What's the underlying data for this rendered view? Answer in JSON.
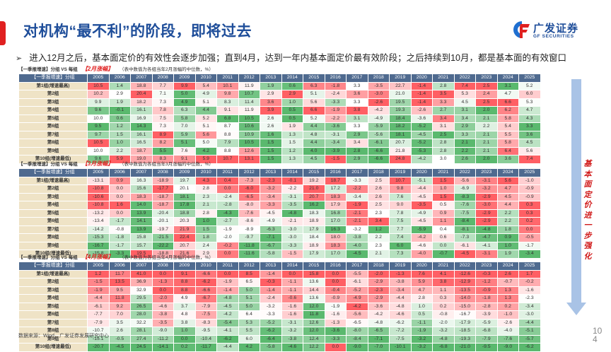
{
  "header": {
    "title": "对机构“最不利”的阶段，即将过去",
    "logo_cn": "广发证券",
    "logo_en": "GF SECURITIES"
  },
  "bullet": "进入12月之后，基本面定价的有效性会逐步加强；直到4月，达到一年内基本面定价最有效阶段；之后持续到10月，都是基本面的有效窗口",
  "side_annotation": "基本面定价进一步强化",
  "page_number": "10\n4",
  "source": "数据来源：Wind，广发证券发展研究中心",
  "colors": {
    "title_blue": "#1f4e9a",
    "accent_red": "#e02020",
    "header_bg": "#4f6a8f",
    "group_bg": "#efe3c6",
    "arrow_blue": "#a9c3e6"
  },
  "tables": [
    {
      "caption_prefix": "【一季报增速】分组 VS 每组",
      "caption_month": "【2月涨幅】",
      "caption_note": "（表中数值为各组当年2月涨幅的中位数，%）",
      "header_label": "【一季报增速】分组",
      "years": [
        "2005",
        "2006",
        "2007",
        "2008",
        "2009",
        "2010",
        "2011",
        "2012",
        "2013",
        "2014",
        "2015",
        "2016",
        "2017",
        "2018",
        "2019",
        "2020",
        "2021",
        "2022",
        "2023",
        "2024",
        "2025"
      ],
      "groups": [
        "第1组(增速最高)",
        "第2组",
        "第3组",
        "第4组",
        "第5组",
        "第6组",
        "第7组",
        "第8组",
        "第9组",
        "第10组(增速最低)"
      ],
      "values": [
        [
          10.5,
          1.4,
          18.8,
          7.7,
          9.9,
          5.4,
          10.1,
          11.9,
          1.9,
          0.6,
          6.3,
          -1.8,
          3.3,
          -3.5,
          22.7,
          -1.4,
          2.8,
          7.4,
          2.5,
          3.1,
          5.2
        ],
        [
          10.2,
          2.9,
          20.4,
          7.1,
          5.0,
          4.9,
          9.8,
          10.7,
          2.9,
          2.9,
          5.1,
          -2.4,
          3.6,
          -3.0,
          21.0,
          -1.4,
          3.5,
          5.3,
          2.4,
          4.7,
          6.0
        ],
        [
          9.9,
          1.9,
          18.2,
          7.3,
          4.9,
          5.1,
          8.3,
          11.4,
          3.6,
          1.0,
          5.6,
          -3.3,
          3.3,
          -2.6,
          19.5,
          -1.4,
          3.3,
          4.5,
          2.5,
          6.6,
          5.3
        ],
        [
          9.6,
          -0.1,
          16.1,
          7.8,
          6.3,
          4.4,
          9.1,
          11.9,
          3.9,
          0.5,
          6.6,
          -1.9,
          3.8,
          -4.2,
          19.3,
          -2.6,
          2.7,
          3.1,
          2.0,
          6.2,
          4.7
        ],
        [
          10.0,
          0.6,
          16.9,
          7.5,
          5.8,
          5.2,
          6.8,
          10.5,
          2.6,
          0.5,
          5.2,
          -2.2,
          3.1,
          -4.9,
          18.4,
          -3.6,
          3.4,
          3.4,
          2.1,
          5.8,
          4.3
        ],
        [
          9.5,
          1.2,
          14.3,
          7.3,
          7.0,
          5.1,
          8.7,
          10.6,
          2.6,
          1.9,
          4.4,
          -3.6,
          3.3,
          -5.9,
          18.2,
          -5.2,
          3.1,
          2.9,
          2.2,
          5.4,
          3.3
        ],
        [
          9.7,
          1.5,
          16.1,
          8.9,
          5.9,
          5.6,
          8.8,
          10.9,
          1.6,
          1.3,
          4.8,
          -3.1,
          2.9,
          -5.6,
          18.1,
          -4.5,
          2.5,
          3.3,
          2.1,
          5.5,
          3.6
        ],
        [
          10.5,
          1.0,
          16.5,
          8.2,
          5.1,
          5.0,
          7.9,
          10.5,
          1.5,
          1.5,
          4.4,
          -3.4,
          3.4,
          -6.1,
          20.7,
          -5.2,
          2.8,
          2.1,
          2.1,
          5.8,
          4.5
        ],
        [
          10.0,
          2.2,
          18.7,
          5.5,
          7.6,
          4.2,
          8.8,
          12.6,
          1.5,
          1.2,
          4.0,
          -3.9,
          2.8,
          -6.6,
          21.8,
          -5.3,
          2.8,
          2.2,
          2.1,
          6.4,
          5.6
        ],
        [
          9.6,
          5.9,
          19.0,
          8.3,
          9.1,
          5.9,
          10.7,
          13.1,
          1.5,
          1.3,
          4.5,
          -1.5,
          2.9,
          -6.6,
          24.8,
          -4.2,
          3.0,
          2.6,
          2.0,
          3.6,
          7.4
        ]
      ]
    },
    {
      "caption_prefix": "【一季报增速】分组 VS 每组",
      "caption_month": "【3月涨幅】",
      "caption_note": "（表中数值为各组当年3月涨幅的中位数，%）",
      "header_label": "【一季报增速】分组",
      "years": [
        "2005",
        "2006",
        "2007",
        "2008",
        "2009",
        "2010",
        "2011",
        "2012",
        "2013",
        "2014",
        "2015",
        "2016",
        "2017",
        "2018",
        "2019",
        "2020",
        "2021",
        "2022",
        "2023",
        "2024",
        "2025"
      ],
      "groups": [
        "第1组(增速最高)",
        "第2组",
        "第3组",
        "第4组",
        "第5组",
        "第6组",
        "第7组",
        "第8组",
        "第9组",
        "第10组(增速最低)"
      ],
      "values": [
        [
          -13.1,
          0.9,
          16.3,
          -18.9,
          19.7,
          4.3,
          0.4,
          -7.3,
          -2.3,
          -0.1,
          19.2,
          18.7,
          -3.3,
          2.5,
          10.7,
          -5.1,
          1.5,
          -5.6,
          -3.1,
          5.6,
          -1.0
        ],
        [
          -10.8,
          0.0,
          15.6,
          -17.7,
          20.1,
          2.8,
          0.0,
          -6.0,
          -3.2,
          -2.2,
          21.0,
          17.2,
          -2.2,
          2.6,
          9.8,
          -4.4,
          1.0,
          -6.9,
          -3.2,
          4.7,
          -0.9
        ],
        [
          -10.6,
          0.0,
          18.3,
          -18.7,
          18.1,
          2.3,
          -2.4,
          -6.5,
          -3.4,
          -3.1,
          20.7,
          18.3,
          -3.4,
          2.6,
          7.6,
          -4.5,
          1.5,
          -8.3,
          -2.9,
          4.5,
          -0.9
        ],
        [
          -10.8,
          1.6,
          14.0,
          -18.7,
          17.8,
          2.1,
          -2.8,
          -8.0,
          -3.3,
          -3.5,
          16.2,
          17.9,
          -1.9,
          2.5,
          9.0,
          -3.5,
          0.5,
          -7.6,
          -3.0,
          4.4,
          0.3
        ],
        [
          -13.2,
          0.0,
          13.9,
          -20.4,
          18.8,
          2.8,
          -4.3,
          -7.6,
          -4.5,
          -4.8,
          18.3,
          16.8,
          -2.1,
          2.3,
          7.8,
          -4.9,
          0.9,
          -7.5,
          -2.9,
          2.2,
          0.3
        ],
        [
          -13.4,
          -1.7,
          14.1,
          -20.1,
          20.3,
          1.0,
          -2.7,
          -8.6,
          -4.9,
          -2.1,
          18.9,
          17.0,
          -2.1,
          3.4,
          7.5,
          -4.5,
          1.1,
          -8.4,
          -2.9,
          2.2,
          0.2
        ],
        [
          -14.2,
          -0.8,
          13.9,
          -19.7,
          21.9,
          1.5,
          -1.9,
          -8.9,
          -6.3,
          -3.0,
          17.9,
          16.3,
          -3.2,
          1.2,
          7.7,
          -5.9,
          0.4,
          -8.1,
          -4.8,
          1.8,
          0.0
        ],
        [
          -15.3,
          -1.8,
          15.8,
          -21.5,
          22.4,
          1.8,
          -2.0,
          -9.7,
          -7.1,
          -3.0,
          18.4,
          18.0,
          -3.8,
          2.2,
          7.4,
          -4.2,
          0.6,
          -7.3,
          -4.7,
          0.9,
          -0.5
        ],
        [
          -16.7,
          -1.7,
          15.7,
          -22.2,
          20.7,
          2.4,
          -0.2,
          -11.8,
          -6.7,
          -3.3,
          18.9,
          18.3,
          -4.0,
          2.3,
          6.0,
          -4.6,
          0.0,
          -6.1,
          -4.1,
          1.0,
          -1.7
        ],
        [
          -15.8,
          -3.3,
          19.5,
          -18.8,
          21.6,
          2.9,
          0.0,
          -11.6,
          -5.8,
          -1.5,
          17.9,
          17.0,
          -4.5,
          2.1,
          7.3,
          -4.0,
          -0.7,
          -4.5,
          -3.1,
          1.9,
          -3.4
        ]
      ]
    },
    {
      "caption_prefix": "【一季报增速】分组 VS 每组",
      "caption_month": "【4月涨幅】",
      "caption_note": "（表中数值为各组当年4月涨幅的中位数，%）",
      "header_label": "【一季报增速】分组",
      "years": [
        "2005",
        "2006",
        "2007",
        "2008",
        "2009",
        "2010",
        "2011",
        "2012",
        "2013",
        "2014",
        "2015",
        "2016",
        "2017",
        "2018",
        "2019",
        "2020",
        "2021",
        "2022",
        "2023",
        "2024",
        "2025"
      ],
      "groups": [
        "第1组(增速最高)",
        "第2组",
        "第3组",
        "第4组",
        "第5组",
        "第6组",
        "第7组",
        "第8组",
        "第9组",
        "第10组(增速最低)"
      ],
      "values": [
        [
          1.2,
          11.7,
          41.0,
          0.0,
          9.1,
          -6.6,
          0.0,
          8.5,
          -1.4,
          0.0,
          15.8,
          0.0,
          -5.5,
          -2.0,
          -1.3,
          7.6,
          4.1,
          -12.6,
          -0.3,
          2.6,
          1.7
        ],
        [
          -1.5,
          13.5,
          36.9,
          -1.3,
          8.8,
          -6.2,
          -1.9,
          6.5,
          -0.3,
          -1.1,
          13.6,
          0.0,
          -6.1,
          -2.9,
          -3.8,
          5.9,
          3.8,
          -12.9,
          -1.2,
          -0.7,
          -0.2
        ],
        [
          -1.9,
          9.5,
          32.9,
          0.0,
          8.8,
          -6.6,
          -1.4,
          5.0,
          -1.4,
          -1.1,
          14.4,
          -0.4,
          -5.2,
          -2.3,
          -3.4,
          4.7,
          1.1,
          -13.5,
          -0.9,
          1.3,
          -1.6
        ],
        [
          -4.4,
          11.8,
          29.5,
          -2.0,
          4.9,
          -6.7,
          -4.8,
          5.1,
          -2.4,
          -0.6,
          13.6,
          -0.9,
          -4.9,
          -2.9,
          -4.4,
          2.8,
          0.3,
          -14.0,
          -1.8,
          1.3,
          -2.3
        ],
        [
          -6.1,
          9.2,
          26.5,
          -4.6,
          3.7,
          -7.9,
          -4.5,
          5.0,
          -3.2,
          -1.6,
          12.0,
          -1.9,
          -4.2,
          -3.6,
          -4.8,
          1.0,
          0.2,
          -15.0,
          -2.8,
          0.2,
          -3.4
        ],
        [
          -7.7,
          7.0,
          28.0,
          -3.8,
          4.8,
          -7.5,
          -4.2,
          6.4,
          -3.3,
          -1.6,
          11.8,
          -1.6,
          -5.6,
          -4.2,
          -4.6,
          0.5,
          -0.8,
          -16.7,
          -3.9,
          -1.0,
          -3.0
        ],
        [
          -7.9,
          3.5,
          32.2,
          -3.5,
          3.8,
          -8.3,
          -5.4,
          5.3,
          -5.2,
          -3.1,
          12.6,
          -1.3,
          -6.5,
          -4.8,
          -6.2,
          -1.1,
          -2.0,
          -17.9,
          -5.9,
          -2.6,
          -4.4
        ],
        [
          -10.7,
          2.6,
          28.1,
          -9.0,
          1.0,
          -9.5,
          -4.1,
          5.5,
          -6.2,
          -3.2,
          12.0,
          -3.6,
          -8.0,
          -6.5,
          -7.2,
          -1.9,
          -3.2,
          -18.5,
          -6.8,
          -4.0,
          -5.1
        ],
        [
          -15.1,
          -0.5,
          27.4,
          -11.2,
          0.0,
          -10.4,
          -6.2,
          6.0,
          -6.4,
          -3.8,
          12.4,
          -3.3,
          -8.4,
          -7.1,
          -7.5,
          -3.2,
          -4.8,
          -19.3,
          -7.9,
          -7.6,
          -5.7
        ],
        [
          -20.7,
          -4.5,
          24.5,
          -14.1,
          0.2,
          -11.7,
          -4.4,
          4.2,
          -5.8,
          -4.6,
          12.2,
          0.0,
          -9.0,
          -7.0,
          -10.1,
          -3.2,
          -6.8,
          -21.0,
          -9.5,
          -9.0,
          -6.2
        ]
      ]
    }
  ]
}
